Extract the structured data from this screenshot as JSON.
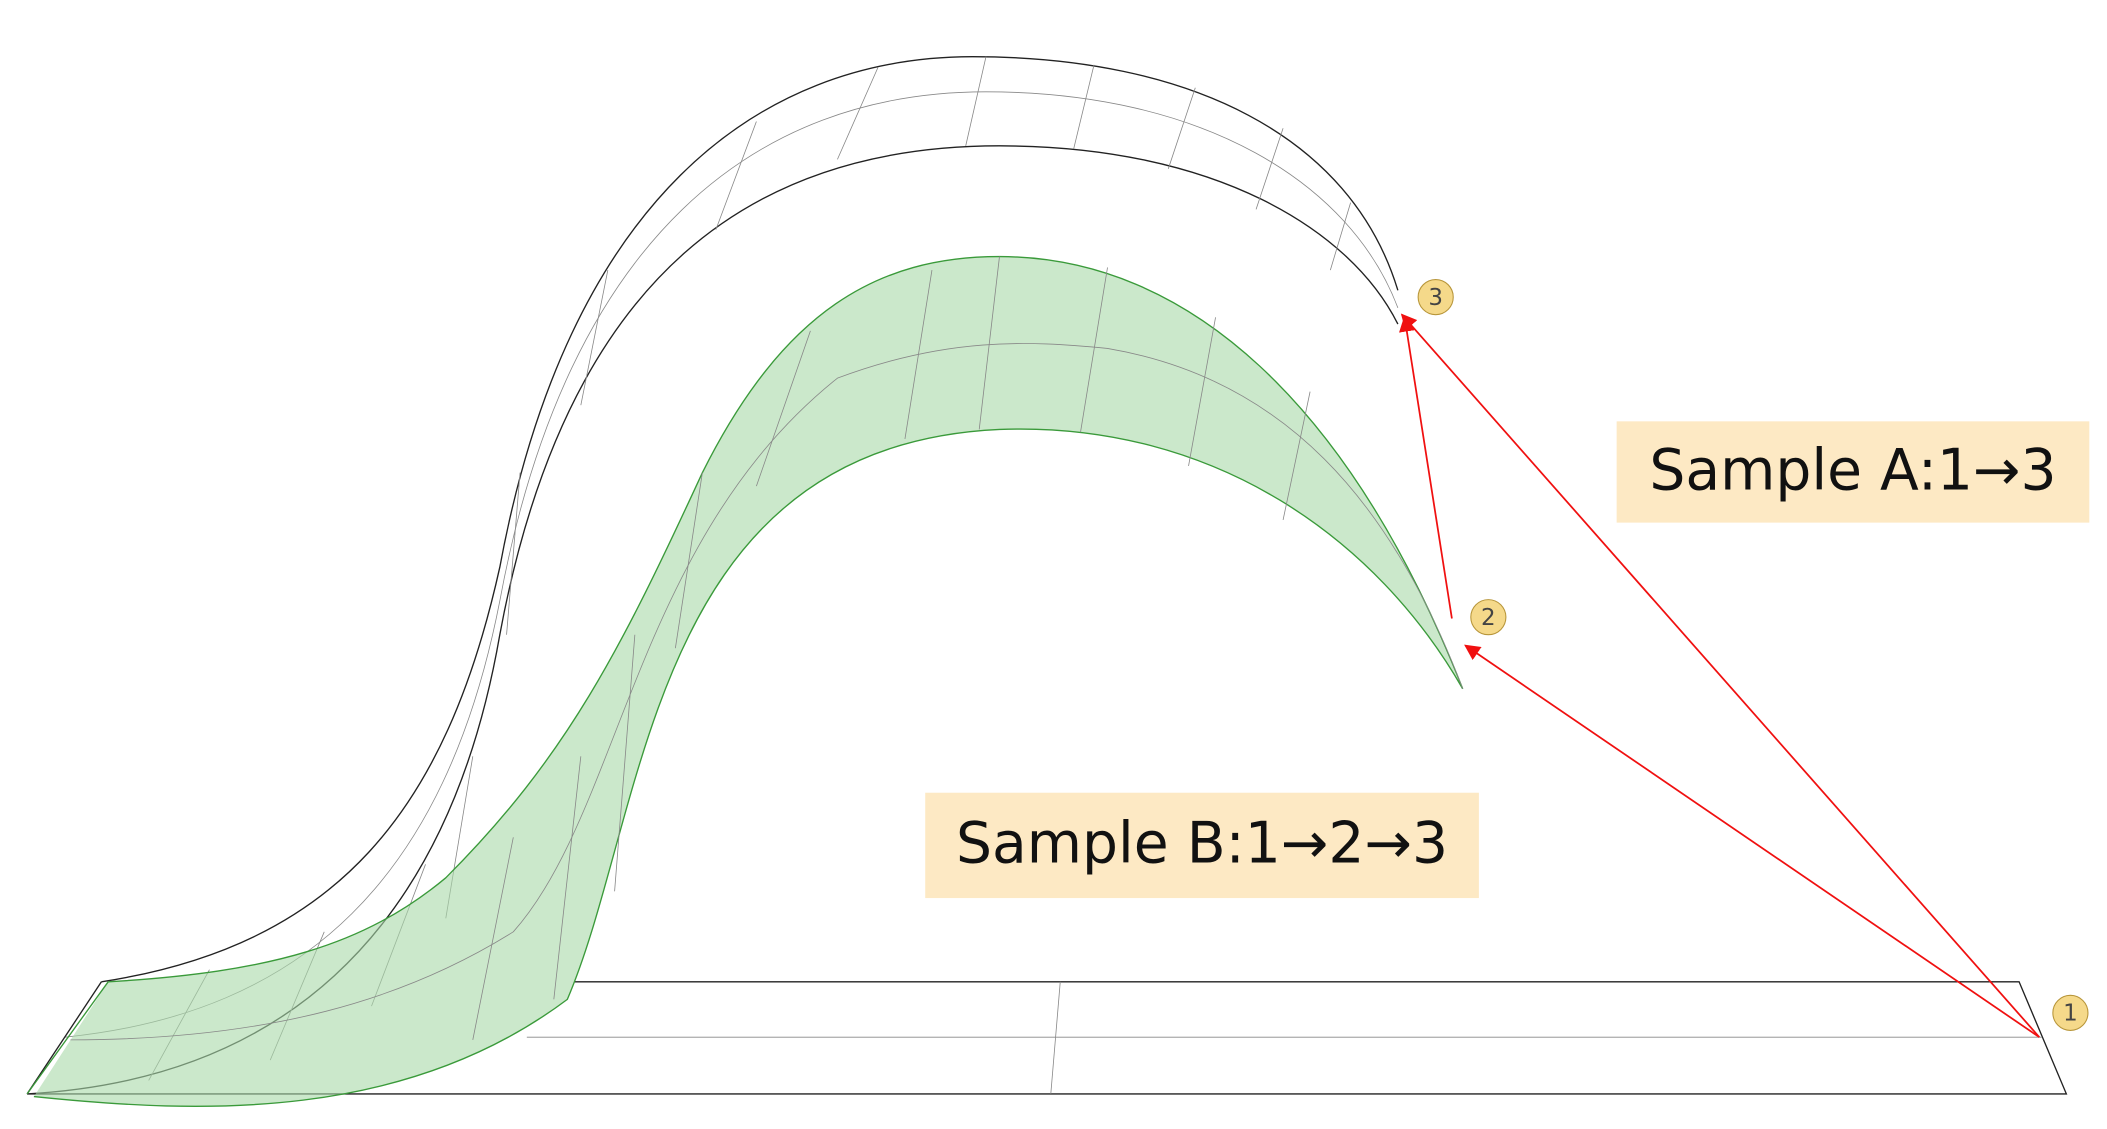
{
  "labels": {
    "sample_a": "Sample A:1→3",
    "sample_b": "Sample B:1→2→3"
  },
  "markers": [
    "1",
    "2",
    "3"
  ]
}
